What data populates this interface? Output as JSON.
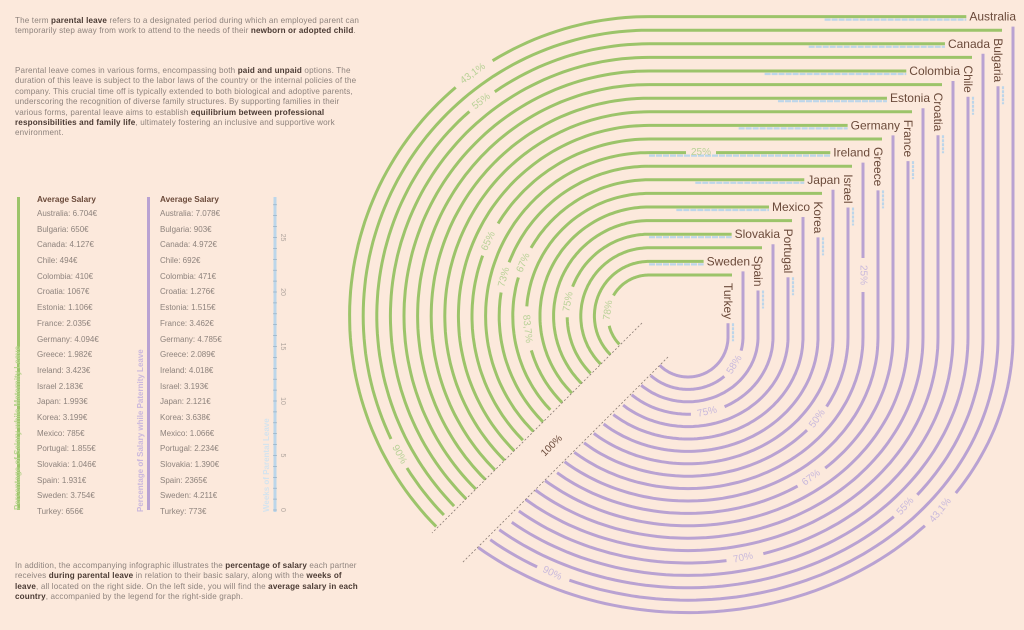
{
  "intro": {
    "p1": [
      {
        "t": "The term ",
        "b": false
      },
      {
        "t": "parental leave",
        "b": true
      },
      {
        "t": " refers to a designated period during which an employed parent can temporarily step away from work to attend to the needs of their ",
        "b": false
      },
      {
        "t": "newborn or adopted child",
        "b": true
      },
      {
        "t": ".",
        "b": false
      }
    ],
    "p2": [
      {
        "t": "Parental leave comes in various forms, encompassing both ",
        "b": false
      },
      {
        "t": "paid and unpaid",
        "b": true
      },
      {
        "t": " options. The duration of this leave is subject to the labor laws of the country or the internal policies of the company. This crucial time off is typically extended to both biological and adoptive parents, underscoring the recognition of diverse family structures. By supporting families in their various forms, parental leave aims to establish ",
        "b": false
      },
      {
        "t": "equilibrium between professional responsibilities and family life",
        "b": true
      },
      {
        "t": ", ultimately fostering an inclusive and supportive work environment.",
        "b": false
      }
    ],
    "p3": [
      {
        "t": "In addition, the accompanying infographic illustrates the ",
        "b": false
      },
      {
        "t": "percentage of salary",
        "b": true
      },
      {
        "t": " each partner receives ",
        "b": false
      },
      {
        "t": "during parental leave",
        "b": true
      },
      {
        "t": " in relation to their basic salary, along with the ",
        "b": false
      },
      {
        "t": "weeks of leave",
        "b": true
      },
      {
        "t": ", all located on the right side. On the left side, you will find the ",
        "b": false
      },
      {
        "t": "average salary in each country",
        "b": true
      },
      {
        "t": ", accompanied by the legend for the right-side graph.",
        "b": false
      }
    ]
  },
  "legend": {
    "maternity_axis_label": "Percentage of Salary while Maternity Leave",
    "paternity_axis_label": "Percentage of Salary while Paternity Leave",
    "weeks_axis_label": "Weeks of Parental Leave",
    "weeks_ticks": [
      "0",
      "5",
      "10",
      "15",
      "20",
      "25"
    ],
    "maternity": {
      "header": "Average Salary",
      "items": [
        "Australia: 6.704€",
        "Bulgaria: 650€",
        "Canada: 4.127€",
        "Chile: 494€",
        "Colombia: 410€",
        "Croatia: 1067€",
        "Estonia: 1.106€",
        "France: 2.035€",
        "Germany: 4.094€",
        "Greece: 1.982€",
        "Ireland: 3.423€",
        "Israel 2.183€",
        "Japan: 1.993€",
        "Korea: 3.199€",
        "Mexico: 785€",
        "Portugal: 1.855€",
        "Slovakia: 1.046€",
        "Spain: 1.931€",
        "Sweden: 3.754€",
        "Turkey: 656€"
      ]
    },
    "paternity": {
      "header": "Average Salary",
      "items": [
        "Australia: 7.078€",
        "Bulgaria: 903€",
        "Canada: 4.972€",
        "Chile: 692€",
        "Colombia: 471€",
        "Croatia: 1.276€",
        "Estonia: 1.515€",
        "France: 3.462€",
        "Germany: 4.785€",
        "Greece: 2.089€",
        "Ireland: 4.018€",
        "Israel: 3.193€",
        "Japan: 2.121€",
        "Korea: 3.638€",
        "Mexico: 1.066€",
        "Portugal: 2.234€",
        "Slovakia: 1.390€",
        "Spain: 2365€",
        "Sweden: 4.211€",
        "Turkey: 773€"
      ]
    }
  },
  "colors": {
    "background": "#fce9dc",
    "maternity": "#9cc46a",
    "paternity": "#b9a2d2",
    "weeks": "#bcd6ea",
    "label": "#6b4a3a"
  },
  "chart_data": {
    "type": "radial-track",
    "full_scale_label": "100%",
    "countries": [
      {
        "name": "Australia",
        "orient": "h",
        "weeks": 13,
        "maternity_label": "43,1%",
        "paternity_label": "43,1%"
      },
      {
        "name": "Bulgaria",
        "orient": "v",
        "maternity_label": "90%",
        "paternity_label": "90%"
      },
      {
        "name": "Canada",
        "orient": "h",
        "weeks": 12.5,
        "maternity_label": "55%",
        "paternity_label": "55%"
      },
      {
        "name": "Chile",
        "orient": "v"
      },
      {
        "name": "Colombia",
        "orient": "h",
        "weeks": 13,
        "paternity_label": "70%"
      },
      {
        "name": "Croatia",
        "orient": "v"
      },
      {
        "name": "Estonia",
        "orient": "h",
        "weeks": 10
      },
      {
        "name": "France",
        "orient": "v"
      },
      {
        "name": "Germany",
        "orient": "h",
        "weeks": 10,
        "paternity_label": "67%"
      },
      {
        "name": "Greece",
        "orient": "v",
        "maternity_label": "65%"
      },
      {
        "name": "Ireland",
        "orient": "h",
        "weeks": 17,
        "maternity_label": "25%",
        "paternity_label": "25%"
      },
      {
        "name": "Israel",
        "orient": "v",
        "maternity_label": "73%",
        "paternity_label": "50%"
      },
      {
        "name": "Japan",
        "orient": "h",
        "weeks": 10,
        "maternity_label": "67%"
      },
      {
        "name": "Korea",
        "orient": "v",
        "maternity_label": "83,7%"
      },
      {
        "name": "Mexico",
        "orient": "h",
        "weeks": 8.5
      },
      {
        "name": "Portugal",
        "orient": "v"
      },
      {
        "name": "Slovakia",
        "orient": "h",
        "weeks": 8,
        "maternity_label": "75%",
        "paternity_label": "75%"
      },
      {
        "name": "Spain",
        "orient": "v"
      },
      {
        "name": "Sweden",
        "orient": "h",
        "weeks": 5.5,
        "paternity_label": "58%"
      },
      {
        "name": "Turkey",
        "orient": "v",
        "maternity_label": "78%"
      }
    ]
  }
}
